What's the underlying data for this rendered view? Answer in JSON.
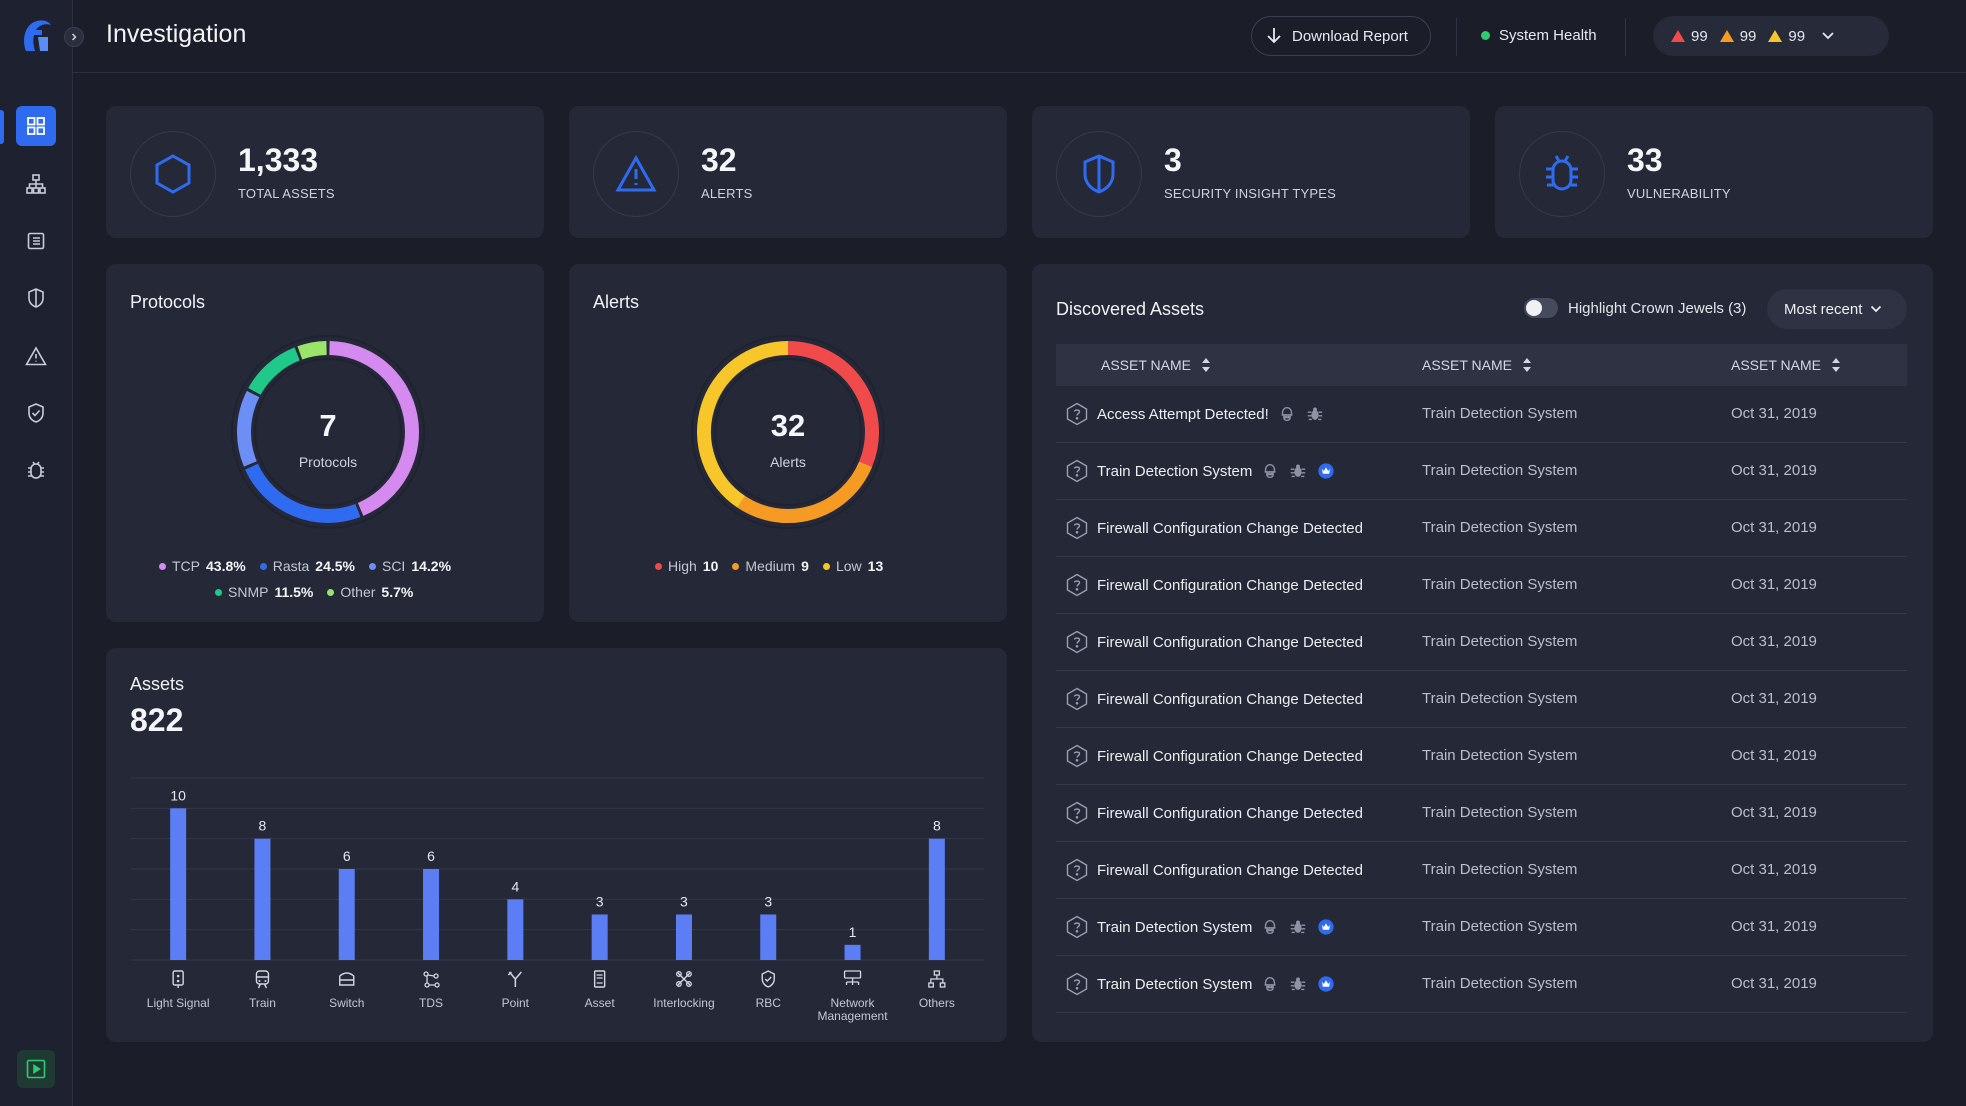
{
  "header": {
    "title": "Investigation",
    "download_label": "Download Report",
    "system_health_label": "System Health",
    "alert_counts": [
      {
        "level": "critical",
        "color": "#f04a4a",
        "count": "99"
      },
      {
        "level": "high",
        "color": "#f59a23",
        "count": "99"
      },
      {
        "level": "medium",
        "color": "#f6c62a",
        "count": "99"
      }
    ],
    "health_color": "#2ecc71"
  },
  "sidebar": {
    "items": [
      {
        "icon": "dashboard-grid-icon",
        "active": true
      },
      {
        "icon": "network-topology-icon"
      },
      {
        "icon": "list-icon"
      },
      {
        "icon": "shield-icon"
      },
      {
        "icon": "warning-icon"
      },
      {
        "icon": "shield-check-icon"
      },
      {
        "icon": "bug-icon"
      }
    ],
    "bottom_icon": "play-panel-icon"
  },
  "stats": [
    {
      "value": "1,333",
      "label": "TOTAL ASSETS",
      "icon": "hexagon-icon"
    },
    {
      "value": "32",
      "label": "ALERTS",
      "icon": "warning-icon"
    },
    {
      "value": "3",
      "label": "SECURITY INSIGHT TYPES",
      "icon": "shield-icon"
    },
    {
      "value": "33",
      "label": "VULNERABILITY",
      "icon": "bug-icon"
    }
  ],
  "protocols": {
    "title": "Protocols",
    "center_value": "7",
    "center_label": "Protocols",
    "legend": [
      {
        "name": "TCP",
        "value": "43.8%",
        "color": "#d58af0"
      },
      {
        "name": "Rasta",
        "value": "24.5%",
        "color": "#2f6bf0"
      },
      {
        "name": "SCI",
        "value": "14.2%",
        "color": "#6c8ef5"
      },
      {
        "name": "SNMP",
        "value": "11.5%",
        "color": "#1fc98a"
      },
      {
        "name": "Other",
        "value": "5.7%",
        "color": "#9be46a"
      }
    ]
  },
  "alerts": {
    "title": "Alerts",
    "center_value": "32",
    "center_label": "Alerts",
    "legend": [
      {
        "name": "High",
        "value": "10",
        "color": "#f04a4a"
      },
      {
        "name": "Medium",
        "value": "9",
        "color": "#f59a23"
      },
      {
        "name": "Low",
        "value": "13",
        "color": "#f6c62a"
      }
    ]
  },
  "assets": {
    "title": "Assets",
    "total": "822"
  },
  "chart_data": {
    "type": "bar",
    "categories": [
      "Light Signal",
      "Train",
      "Switch",
      "TDS",
      "Point",
      "Asset",
      "Interlocking",
      "RBC",
      "Network Management",
      "Others"
    ],
    "values": [
      10,
      8,
      6,
      6,
      4,
      3,
      3,
      3,
      1,
      8
    ],
    "ylim": [
      0,
      12
    ],
    "grid": true,
    "bar_color": "#5b7ef5",
    "category_icons": [
      "signal-icon",
      "train-icon",
      "switch-icon",
      "tds-icon",
      "point-icon",
      "asset-icon",
      "interlocking-icon",
      "rbc-icon",
      "network-icon",
      "others-icon"
    ]
  },
  "discovered": {
    "title": "Discovered Assets",
    "toggle_label": "Highlight Crown Jewels (3)",
    "sort_label": "Most recent",
    "columns": [
      "ASSET NAME",
      "ASSET NAME",
      "ASSET NAME"
    ],
    "rows": [
      {
        "name": "Access Attempt Detected!",
        "system": "Train Detection System",
        "date": "Oct 31, 2019",
        "tags": [
          "hacker-icon",
          "bug-icon"
        ]
      },
      {
        "name": "Train Detection System",
        "system": "Train Detection System",
        "date": "Oct 31, 2019",
        "tags": [
          "hacker-icon",
          "bug-icon",
          "crown-icon"
        ]
      },
      {
        "name": "Firewall Configuration Change Detected",
        "system": "Train Detection System",
        "date": "Oct 31, 2019",
        "tags": []
      },
      {
        "name": "Firewall Configuration Change Detected",
        "system": "Train Detection System",
        "date": "Oct 31, 2019",
        "tags": []
      },
      {
        "name": "Firewall Configuration Change Detected",
        "system": "Train Detection System",
        "date": "Oct 31, 2019",
        "tags": []
      },
      {
        "name": "Firewall Configuration Change Detected",
        "system": "Train Detection System",
        "date": "Oct 31, 2019",
        "tags": []
      },
      {
        "name": "Firewall Configuration Change Detected",
        "system": "Train Detection System",
        "date": "Oct 31, 2019",
        "tags": []
      },
      {
        "name": "Firewall Configuration Change Detected",
        "system": "Train Detection System",
        "date": "Oct 31, 2019",
        "tags": []
      },
      {
        "name": "Firewall Configuration Change Detected",
        "system": "Train Detection System",
        "date": "Oct 31, 2019",
        "tags": []
      },
      {
        "name": "Train Detection System",
        "system": "Train Detection System",
        "date": "Oct 31, 2019",
        "tags": [
          "hacker-icon",
          "bug-icon",
          "crown-icon"
        ]
      },
      {
        "name": "Train Detection System",
        "system": "Train Detection System",
        "date": "Oct 31, 2019",
        "tags": [
          "hacker-icon",
          "bug-icon",
          "crown-icon"
        ]
      }
    ]
  }
}
